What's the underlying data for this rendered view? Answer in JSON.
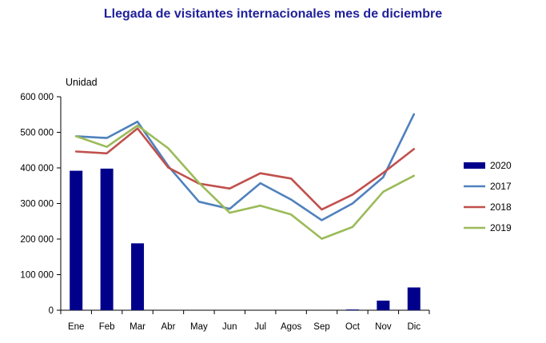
{
  "chart_data": {
    "type": "bar+line",
    "title": "Llegada de visitantes internacionales mes de diciembre",
    "ylabel": "Unidad",
    "xlabel": "",
    "ylim": [
      0,
      600000
    ],
    "yticks": [
      0,
      100000,
      200000,
      300000,
      400000,
      500000,
      600000
    ],
    "ytick_labels": [
      "0",
      "100 000",
      "200 000",
      "300 000",
      "400 000",
      "500 000",
      "600 000"
    ],
    "categories": [
      "Ene",
      "Feb",
      "Mar",
      "Abr",
      "May",
      "Jun",
      "Jul",
      "Agos",
      "Sep",
      "Oct",
      "Nov",
      "Dic"
    ],
    "grid": false,
    "legend_position": "right",
    "series": [
      {
        "name": "2020",
        "kind": "bar",
        "color": "#00008b",
        "values": [
          392000,
          398000,
          188000,
          0,
          0,
          0,
          0,
          0,
          0,
          2000,
          27000,
          64000
        ]
      },
      {
        "name": "2017",
        "kind": "line",
        "color": "#4f81bd",
        "values": [
          489000,
          484000,
          530000,
          405000,
          305000,
          285000,
          357000,
          311000,
          253000,
          300000,
          374000,
          551000
        ]
      },
      {
        "name": "2018",
        "kind": "line",
        "color": "#c0504d",
        "values": [
          446000,
          441000,
          511000,
          401000,
          356000,
          342000,
          385000,
          370000,
          283000,
          325000,
          386000,
          453000
        ]
      },
      {
        "name": "2019",
        "kind": "line",
        "color": "#9bbb59",
        "values": [
          489000,
          459000,
          519000,
          455000,
          358000,
          274000,
          294000,
          269000,
          201000,
          234000,
          333000,
          378000
        ]
      }
    ]
  }
}
